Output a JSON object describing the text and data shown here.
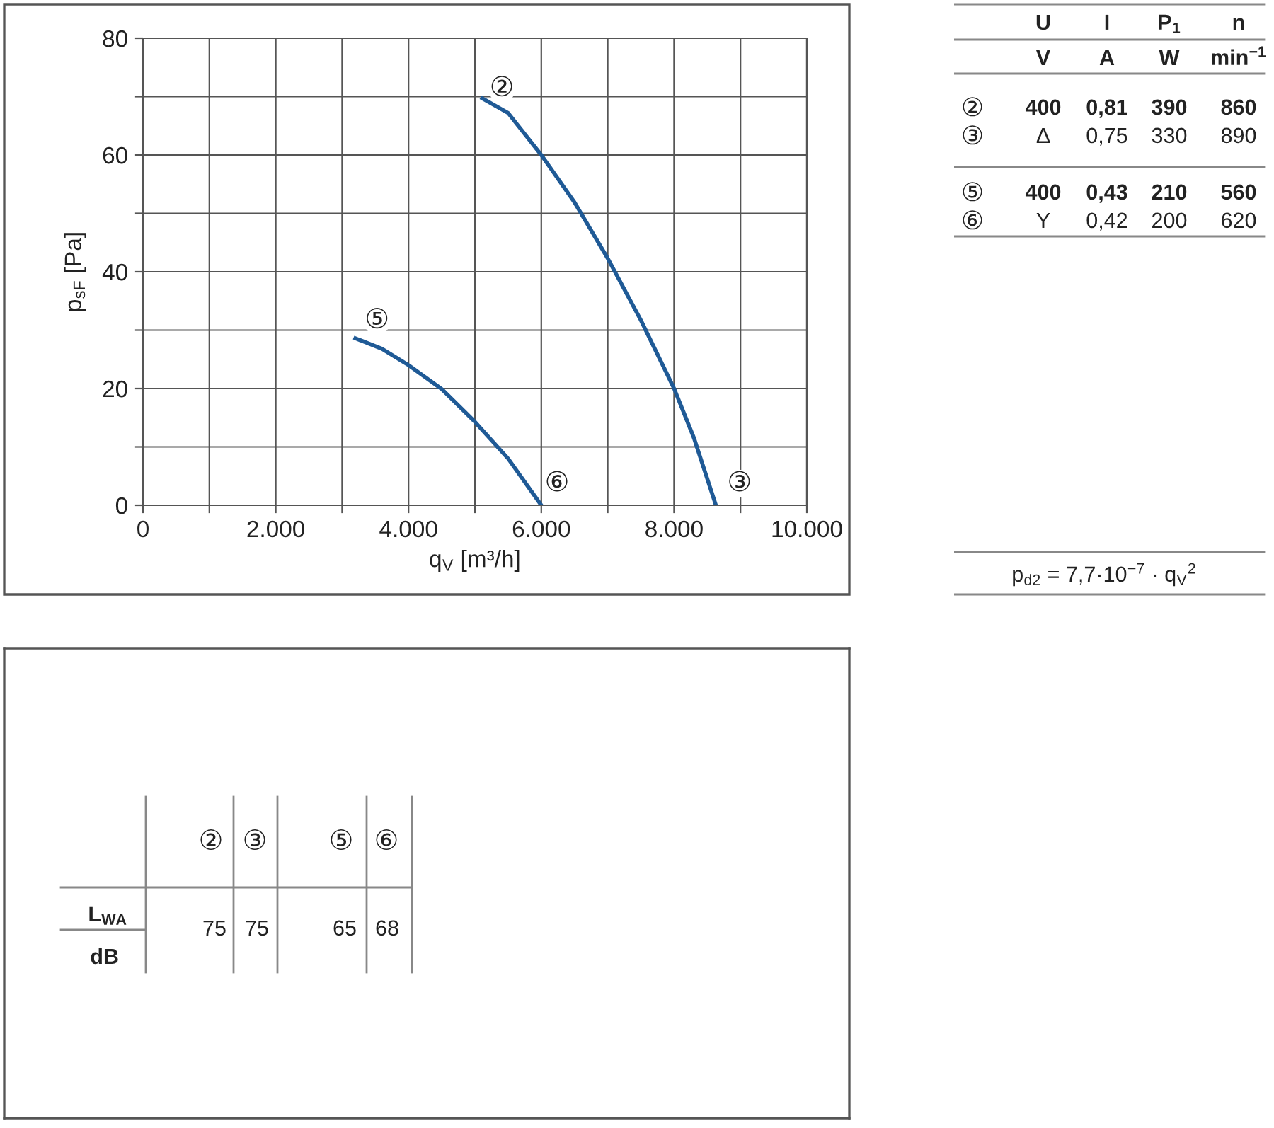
{
  "chart_data": [
    {
      "type": "line",
      "xlabel": "q$_{V}$ [m³/h]",
      "ylabel": "p$_{sF}$ [Pa]",
      "xlim": [
        0,
        10000
      ],
      "ylim": [
        0,
        80
      ],
      "xticks": [
        {
          "value": 0,
          "label": "0"
        },
        {
          "value": 1000,
          "label": null
        },
        {
          "value": 2000,
          "label": "2.000"
        },
        {
          "value": 3000,
          "label": null
        },
        {
          "value": 4000,
          "label": "4.000"
        },
        {
          "value": 5000,
          "label": null
        },
        {
          "value": 6000,
          "label": "6.000"
        },
        {
          "value": 7000,
          "label": null
        },
        {
          "value": 8000,
          "label": "8.000"
        },
        {
          "value": 9000,
          "label": null
        },
        {
          "value": 10000,
          "label": "10.000"
        }
      ],
      "yticks": [
        0,
        {
          "value": 10,
          "label": null
        },
        20,
        {
          "value": 30,
          "label": null
        },
        40,
        {
          "value": 50,
          "label": null
        },
        60,
        {
          "value": 70,
          "label": null
        },
        80
      ],
      "grid": true,
      "marker": "none",
      "line_style": "solid",
      "series": [
        {
          "color": "#1f5a96",
          "x": [
            5110,
            5500,
            6000,
            6500,
            7000,
            7500,
            8000,
            8300,
            8630
          ],
          "values": [
            69.7,
            67.2,
            60,
            51.9,
            42.3,
            31.7,
            20,
            11.5,
            0
          ]
        },
        {
          "color": "#1f5a96",
          "x": [
            3200,
            3600,
            4000,
            4500,
            5000,
            5500,
            6000
          ],
          "values": [
            28.6,
            26.8,
            24,
            19.9,
            14.3,
            8,
            0
          ]
        }
      ],
      "annotations": [
        {
          "text": "②",
          "x": 5110,
          "y": 69.7
        },
        {
          "text": "③",
          "x": 8630,
          "y": 0
        },
        {
          "text": "⑤",
          "x": 3200,
          "y": 28.6
        },
        {
          "text": "⑥",
          "x": 6000,
          "y": 0
        }
      ]
    },
    {
      "type": "other",
      "annotations": [
        "U",
        "I",
        "P$_{1}$",
        "n",
        "V",
        "A",
        "W",
        "min$^{−1}$",
        "②",
        "400",
        "0,81",
        "390",
        "860",
        "③",
        "Δ",
        "0,75",
        "330",
        "890",
        "⑤",
        "400",
        "0,43",
        "210",
        "560",
        "⑥",
        "Y",
        "0,42",
        "200",
        "620",
        "p$_{d2}$ = 7,7·10$^{−7}$ · q$_{V}$$^{2}$"
      ]
    },
    {
      "type": "other",
      "annotations": [
        "②",
        "③",
        "⑤",
        "⑥",
        "L$_{WA}$",
        "dB",
        "75",
        "75",
        "65",
        "68"
      ]
    }
  ]
}
